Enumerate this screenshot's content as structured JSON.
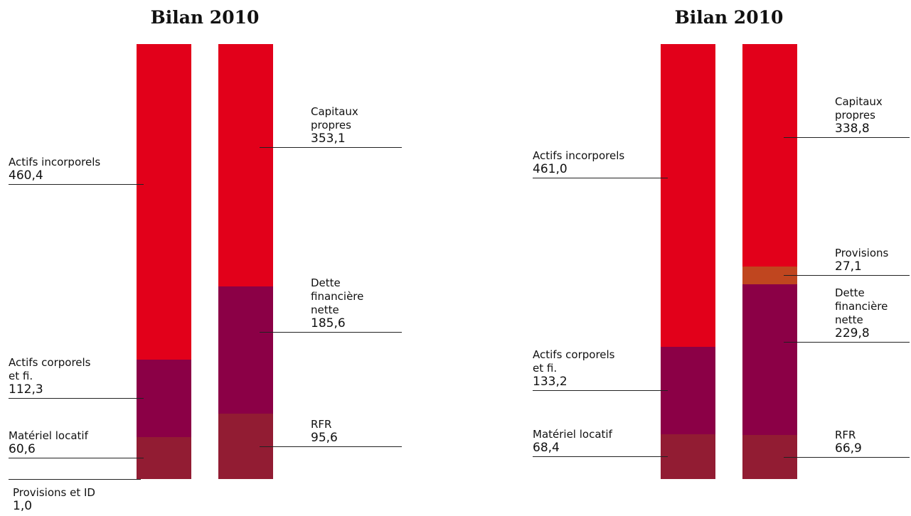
{
  "chart_data": [
    {
      "type": "balance",
      "title": "Bilan 2010",
      "columns": [
        {
          "segments": [
            {
              "name": "Actifs incorporels",
              "value": 460.4,
              "value_label": "460,4",
              "color": "#e2001a"
            },
            {
              "name": "Actifs corporels et fi.",
              "value": 112.3,
              "value_label": "112,3",
              "color": "#8b0046"
            },
            {
              "name": "Matériel locatif",
              "value": 60.6,
              "value_label": "60,6",
              "color": "#921c33"
            },
            {
              "name": "Provisions et ID",
              "value": 1.0,
              "value_label": "1,0",
              "color": "#921c33"
            }
          ]
        },
        {
          "segments": [
            {
              "name": "Capitaux propres",
              "value": 353.1,
              "value_label": "353,1",
              "color": "#e2001a"
            },
            {
              "name": "Dette financière nette",
              "value": 185.6,
              "value_label": "185,6",
              "color": "#8b0046"
            },
            {
              "name": "RFR",
              "value": 95.6,
              "value_label": "95,6",
              "color": "#921c33"
            }
          ]
        }
      ]
    },
    {
      "type": "balance",
      "title": "Bilan 2010",
      "columns": [
        {
          "segments": [
            {
              "name": "Actifs incorporels",
              "value": 461.0,
              "value_label": "461,0",
              "color": "#e2001a"
            },
            {
              "name": "Actifs corporels et fi.",
              "value": 133.2,
              "value_label": "133,2",
              "color": "#8b0046"
            },
            {
              "name": "Matériel locatif",
              "value": 68.4,
              "value_label": "68,4",
              "color": "#921c33"
            }
          ]
        },
        {
          "segments": [
            {
              "name": "Capitaux propres",
              "value": 338.8,
              "value_label": "338,8",
              "color": "#e2001a"
            },
            {
              "name": "Provisions",
              "value": 27.1,
              "value_label": "27,1",
              "color": "#c0461f"
            },
            {
              "name": "Dette financière nette",
              "value": 229.8,
              "value_label": "229,8",
              "color": "#8b0046"
            },
            {
              "name": "RFR",
              "value": 66.9,
              "value_label": "66,9",
              "color": "#921c33"
            }
          ]
        }
      ]
    }
  ]
}
